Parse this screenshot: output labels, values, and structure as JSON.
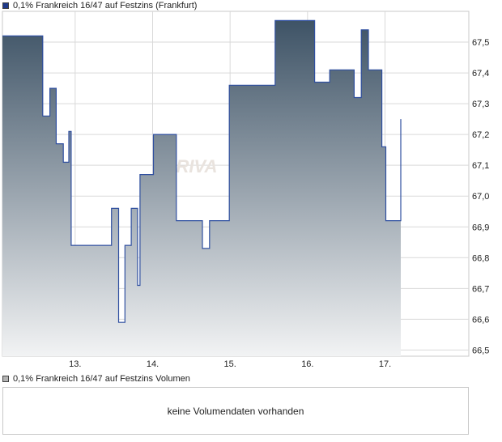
{
  "price_legend": {
    "label": "0,1% Frankreich 16/47 auf Festzins (Frankfurt)",
    "swatch_color": "#1f3a8a"
  },
  "volume_legend": {
    "label": "0,1% Frankreich 16/47 auf Festzins Volumen",
    "swatch_color": "#b4b4b4"
  },
  "volume_panel": {
    "message": "keine Volumendaten vorhanden"
  },
  "watermark": "ARIVA",
  "colors": {
    "line": "#2f4fa0",
    "fill_top": "#3e5366",
    "fill_bottom": "#f2f3f4",
    "grid": "#d9d9d9"
  },
  "chart_data": {
    "type": "area",
    "title": "",
    "xlabel": "",
    "ylabel": "",
    "x_ticks": [
      "13.",
      "14.",
      "15.",
      "16.",
      "17."
    ],
    "x_tick_values": [
      12.92,
      13.9,
      14.88,
      15.86,
      16.84
    ],
    "y_ticks": [
      "66,5",
      "66,6",
      "66,7",
      "66,8",
      "66,9",
      "67,0",
      "67,1",
      "67,2",
      "67,3",
      "67,4",
      "67,5"
    ],
    "ylim": [
      66.48,
      67.6
    ],
    "xlim": [
      12.0,
      17.9
    ],
    "grid": true,
    "y_axis_side": "right",
    "series": [
      {
        "points": [
          [
            12.0,
            67.52
          ],
          [
            12.51,
            67.52
          ],
          [
            12.51,
            67.26
          ],
          [
            12.6,
            67.26
          ],
          [
            12.6,
            67.35
          ],
          [
            12.68,
            67.35
          ],
          [
            12.68,
            67.17
          ],
          [
            12.77,
            67.17
          ],
          [
            12.77,
            67.11
          ],
          [
            12.84,
            67.11
          ],
          [
            12.84,
            67.21
          ],
          [
            12.87,
            67.21
          ],
          [
            12.87,
            66.84
          ],
          [
            13.38,
            66.84
          ],
          [
            13.38,
            66.96
          ],
          [
            13.47,
            66.96
          ],
          [
            13.47,
            66.59
          ],
          [
            13.55,
            66.59
          ],
          [
            13.55,
            66.84
          ],
          [
            13.63,
            66.84
          ],
          [
            13.63,
            66.96
          ],
          [
            13.71,
            66.96
          ],
          [
            13.71,
            66.71
          ],
          [
            13.74,
            66.71
          ],
          [
            13.74,
            67.07
          ],
          [
            13.91,
            67.07
          ],
          [
            13.91,
            67.2
          ],
          [
            14.2,
            67.2
          ],
          [
            14.2,
            66.92
          ],
          [
            14.53,
            66.92
          ],
          [
            14.53,
            66.83
          ],
          [
            14.62,
            66.83
          ],
          [
            14.62,
            66.92
          ],
          [
            14.87,
            66.92
          ],
          [
            14.87,
            67.36
          ],
          [
            15.45,
            67.36
          ],
          [
            15.45,
            67.57
          ],
          [
            15.95,
            67.57
          ],
          [
            15.95,
            67.37
          ],
          [
            16.14,
            67.37
          ],
          [
            16.14,
            67.41
          ],
          [
            16.45,
            67.41
          ],
          [
            16.45,
            67.32
          ],
          [
            16.54,
            67.32
          ],
          [
            16.54,
            67.54
          ],
          [
            16.63,
            67.54
          ],
          [
            16.63,
            67.41
          ],
          [
            16.8,
            67.41
          ],
          [
            16.8,
            67.16
          ],
          [
            16.85,
            67.16
          ],
          [
            16.85,
            66.92
          ],
          [
            17.04,
            66.92
          ],
          [
            17.04,
            67.25
          ]
        ]
      }
    ]
  }
}
